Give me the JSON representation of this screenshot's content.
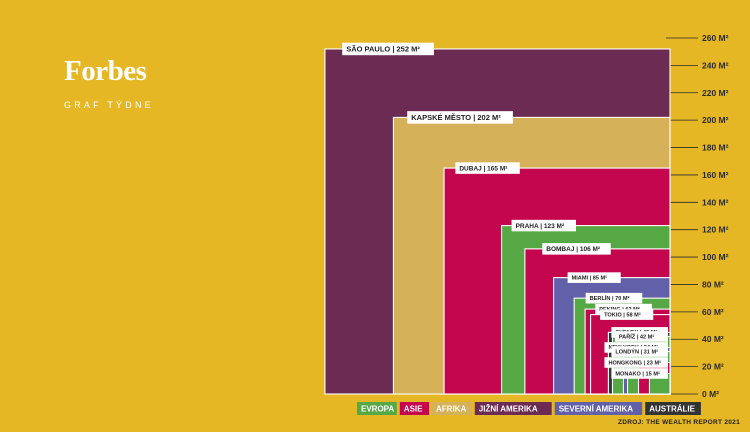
{
  "brand": {
    "name": "Forbes",
    "subtitle": "GRAF TÝDNE"
  },
  "source": "ZDROJ: THE WEALTH REPORT 2021",
  "colors": {
    "background": "#e5b724",
    "europe": "#55a844",
    "asia": "#c4064f",
    "africa": "#d5b259",
    "south_america": "#6b2b52",
    "north_america": "#6160a8",
    "australia": "#333333"
  },
  "chart_data": {
    "type": "nested-squares",
    "unit": "M²",
    "ylim": [
      0,
      260
    ],
    "yticks": [
      {
        "value": 0,
        "label": "0 M²"
      },
      {
        "value": 20,
        "label": "20 M²"
      },
      {
        "value": 40,
        "label": "40 M²"
      },
      {
        "value": 60,
        "label": "60 M²"
      },
      {
        "value": 80,
        "label": "80 M²"
      },
      {
        "value": 100,
        "label": "100 M²"
      },
      {
        "value": 120,
        "label": "120 M²"
      },
      {
        "value": 140,
        "label": "140 M²"
      },
      {
        "value": 160,
        "label": "160 M²"
      },
      {
        "value": 180,
        "label": "180 M²"
      },
      {
        "value": 200,
        "label": "200 M²"
      },
      {
        "value": 220,
        "label": "220 M²"
      },
      {
        "value": 240,
        "label": "240 M²"
      },
      {
        "value": 260,
        "label": "260 M²"
      }
    ],
    "items": [
      {
        "label": "SÃO PAULO | 252 M²",
        "value": 252,
        "region": "south_america"
      },
      {
        "label": "KAPSKÉ MĚSTO | 202 M²",
        "value": 202,
        "region": "africa"
      },
      {
        "label": "DUBAJ | 165 M²",
        "value": 165,
        "region": "asia"
      },
      {
        "label": "PRAHA | 123 M²",
        "value": 123,
        "region": "europe"
      },
      {
        "label": "BOMBAJ | 106 M²",
        "value": 106,
        "region": "asia"
      },
      {
        "label": "MIAMI | 85 M²",
        "value": 85,
        "region": "north_america"
      },
      {
        "label": "BERLÍN | 70 M²",
        "value": 70,
        "region": "europe"
      },
      {
        "label": "PEKING | 62 M²",
        "value": 62,
        "region": "asia"
      },
      {
        "label": "TOKIO | 58 M²",
        "value": 58,
        "region": "asia"
      },
      {
        "label": "SYDNEY | 45 M²",
        "value": 45,
        "region": "australia"
      },
      {
        "label": "PAŘÍŽ | 42 M²",
        "value": 42,
        "region": "europe"
      },
      {
        "label": "NEW YORK | 34 M²",
        "value": 34,
        "region": "north_america"
      },
      {
        "label": "LONDÝN | 31 M²",
        "value": 31,
        "region": "europe"
      },
      {
        "label": "HONGKONG | 23 M²",
        "value": 23,
        "region": "asia"
      },
      {
        "label": "MONAKO | 15 M²",
        "value": 15,
        "region": "europe"
      }
    ],
    "legend": [
      {
        "label": "EVROPA",
        "region": "europe"
      },
      {
        "label": "ASIE",
        "region": "asia"
      },
      {
        "label": "AFRIKA",
        "region": "africa"
      },
      {
        "label": "JIŽNÍ AMERIKA",
        "region": "south_america"
      },
      {
        "label": "SEVERNÍ AMERIKA",
        "region": "north_america"
      },
      {
        "label": "AUSTRÁLIE",
        "region": "australia"
      }
    ]
  }
}
